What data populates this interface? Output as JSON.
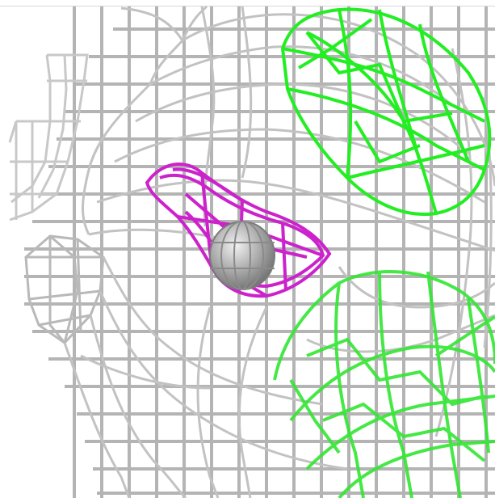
{
  "viewport": {
    "background": "#ffffff",
    "render_mode": "wireframe",
    "grid_color": "#9a9a9a",
    "mesh_color": "#bdbdbd",
    "selection_colors": {
      "primary": "#00e600",
      "secondary": "#cc00cc"
    },
    "object_label": "mesh-head-wireframe"
  }
}
